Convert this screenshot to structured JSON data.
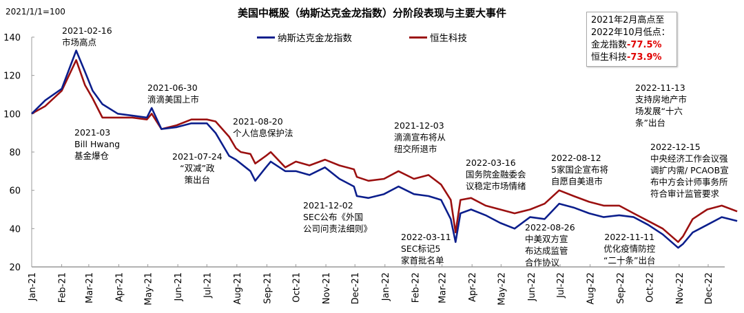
{
  "header": {
    "title": "美国中概股（纳斯达克金龙指数）分阶段表现与主要大事件",
    "unit_note": "2021/1/1=100"
  },
  "infobox": {
    "line1": "2021年2月高点至",
    "line2": "2022年10月低点：",
    "row1_label": "金龙指数",
    "row1_value": "-77.5%",
    "row2_label": "恒生科技",
    "row2_value": "-73.9%",
    "highlight_color": "#e00000"
  },
  "annotations": [
    {
      "lines": [
        "2021-02-16",
        "市场高点"
      ]
    },
    {
      "lines": [
        "2021-03",
        "Bill Hwang",
        "基金爆仓"
      ]
    },
    {
      "lines": [
        "2021-06-30",
        "滴滴美国上市"
      ]
    },
    {
      "lines": [
        "2021-08-20",
        "个人信息保护法"
      ]
    },
    {
      "lines": [
        "2021-07-24",
        "“双减”政",
        "策出台"
      ]
    },
    {
      "lines": [
        "2021-12-03",
        "滴滴宣布将从",
        "纽交所退市"
      ]
    },
    {
      "lines": [
        "2021-12-02",
        "SEC公布《外国",
        "公司问责法细则》"
      ]
    },
    {
      "lines": [
        "2022-03-16",
        "国务院金融委会",
        "议稳定市场情绪"
      ]
    },
    {
      "lines": [
        "2022-03-11",
        "SEC标记5",
        "家首批名单"
      ]
    },
    {
      "lines": [
        "2022-08-12",
        "5家国企宣布将",
        "自愿自美退市"
      ]
    },
    {
      "lines": [
        "2022-08-26",
        "中美双方宣",
        "布达成监管",
        "合作协议"
      ]
    },
    {
      "lines": [
        "2022-11-13",
        "支持房地产市",
        "场发展“十六",
        "条”出台"
      ]
    },
    {
      "lines": [
        "2022-12-15",
        "中央经济工作会议强",
        "调扩内需/ PCAOB宣",
        "布中方会计师事务所",
        "符合审计监管要求"
      ]
    },
    {
      "lines": [
        "2022-11-11",
        "优化疫情防控",
        "“二十条”出台"
      ]
    }
  ],
  "chart_data": {
    "type": "line",
    "title": "美国中概股（纳斯达克金龙指数）分阶段表现与主要大事件",
    "ylabel": "2021/1/1=100",
    "ylim": [
      20,
      140
    ],
    "yticks": [
      20,
      40,
      60,
      80,
      100,
      120,
      140
    ],
    "xticks": [
      "Jan-21",
      "Feb-21",
      "Mar-21",
      "Apr-21",
      "May-21",
      "Jun-21",
      "Jul-21",
      "Aug-21",
      "Sep-21",
      "Oct-21",
      "Nov-21",
      "Dec-21",
      "Jan-22",
      "Feb-22",
      "Mar-22",
      "Apr-22",
      "May-22",
      "Jun-22",
      "Jul-22",
      "Aug-22",
      "Sep-22",
      "Oct-22",
      "Nov-22",
      "Dec-22"
    ],
    "legend_position": "top-center",
    "grid": false,
    "x": [
      "2021-01-01",
      "2021-01-15",
      "2021-02-01",
      "2021-02-16",
      "2021-02-25",
      "2021-03-05",
      "2021-03-15",
      "2021-03-31",
      "2021-04-15",
      "2021-04-30",
      "2021-05-05",
      "2021-05-15",
      "2021-05-31",
      "2021-06-15",
      "2021-07-01",
      "2021-07-10",
      "2021-07-24",
      "2021-07-31",
      "2021-08-05",
      "2021-08-15",
      "2021-08-20",
      "2021-08-31",
      "2021-09-05",
      "2021-09-20",
      "2021-10-01",
      "2021-10-15",
      "2021-10-31",
      "2021-11-15",
      "2021-11-30",
      "2021-12-03",
      "2021-12-15",
      "2021-12-31",
      "2022-01-15",
      "2022-01-31",
      "2022-02-15",
      "2022-02-28",
      "2022-03-10",
      "2022-03-15",
      "2022-03-20",
      "2022-03-31",
      "2022-04-15",
      "2022-04-30",
      "2022-05-15",
      "2022-05-31",
      "2022-06-15",
      "2022-06-30",
      "2022-07-15",
      "2022-07-31",
      "2022-08-15",
      "2022-08-31",
      "2022-09-15",
      "2022-09-30",
      "2022-10-15",
      "2022-10-31",
      "2022-11-05",
      "2022-11-15",
      "2022-11-30",
      "2022-12-15",
      "2022-12-31"
    ],
    "series": [
      {
        "name": "纳斯达克金龙指数",
        "color": "#0b1e8c",
        "values": [
          100,
          107,
          113,
          133,
          122,
          112,
          105,
          100,
          99,
          98,
          103,
          92,
          93,
          95,
          95,
          90,
          78,
          76,
          74,
          70,
          65,
          72,
          75,
          70,
          70,
          68,
          72,
          66,
          62,
          57,
          56,
          58,
          62,
          58,
          57,
          55,
          45,
          33,
          48,
          50,
          47,
          43,
          40,
          46,
          45,
          53,
          51,
          48,
          46,
          47,
          46,
          42,
          37,
          30,
          32,
          38,
          42,
          46,
          44
        ]
      },
      {
        "name": "恒生科技",
        "color": "#9b1010",
        "values": [
          100,
          104,
          112,
          128,
          115,
          108,
          98,
          98,
          98,
          97,
          100,
          92,
          94,
          97,
          97,
          96,
          88,
          82,
          80,
          79,
          74,
          78,
          80,
          72,
          75,
          73,
          76,
          73,
          71,
          67,
          65,
          66,
          70,
          66,
          68,
          63,
          55,
          38,
          55,
          56,
          52,
          50,
          48,
          50,
          53,
          60,
          57,
          54,
          52,
          52,
          48,
          44,
          40,
          33,
          36,
          45,
          50,
          52,
          49
        ]
      }
    ]
  }
}
